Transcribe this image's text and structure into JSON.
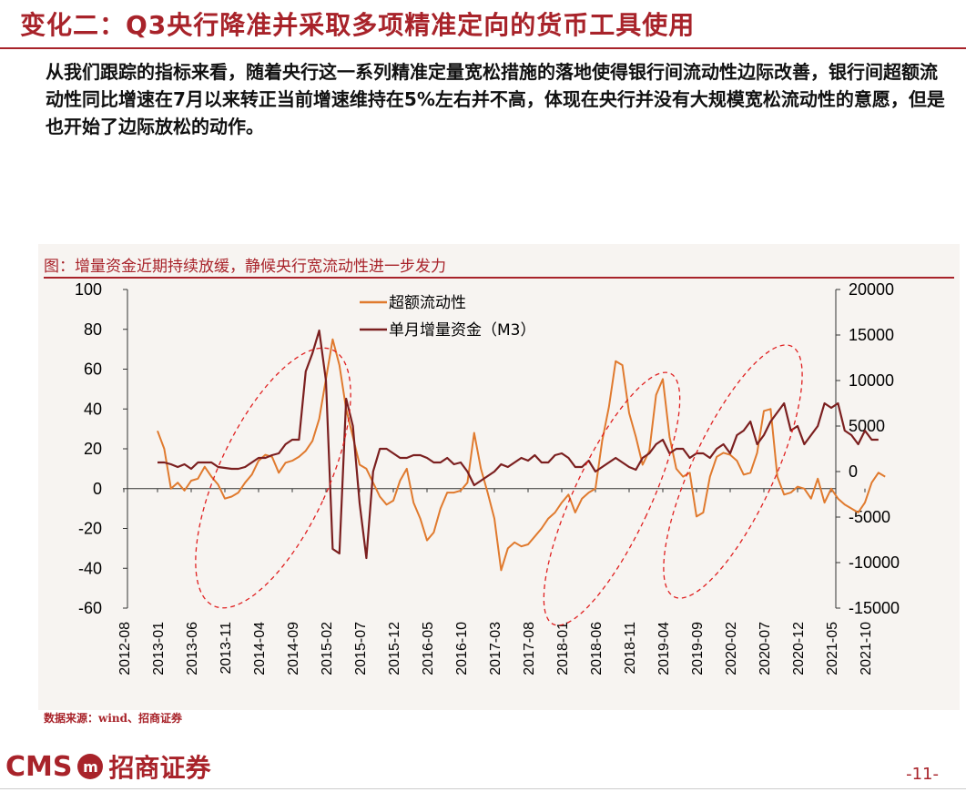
{
  "header": {
    "title": "变化二：Q3央行降准并采取多项精准定向的货币工具使用"
  },
  "body": {
    "paragraph": "从我们跟踪的指标来看，随着央行这一系列精准定量宽松措施的落地使得银行间流动性边际改善，银行间超额流动性同比增速在7月以来转正当前增速维持在5%左右并不高，体现在央行并没有大规模宽松流动性的意愿，但是也开始了边际放松的动作。"
  },
  "figure": {
    "caption": "图：增量资金近期持续放缓，静候央行宽流动性进一步发力",
    "source": "数据来源：wind、招商证券"
  },
  "footer": {
    "logo_en": "CMS",
    "logo_mark": "m",
    "logo_cn": "招商证券",
    "page": "-11-"
  },
  "colors": {
    "accent": "#a8232a",
    "series1": "#e07a2e",
    "series2": "#7b1f1f",
    "ellipse": "#e02020"
  },
  "chart_data": {
    "type": "line",
    "x_ticks": [
      "2012-08",
      "2013-01",
      "2013-06",
      "2013-11",
      "2014-04",
      "2014-09",
      "2015-02",
      "2015-07",
      "2015-12",
      "2016-05",
      "2016-10",
      "2017-03",
      "2017-08",
      "2018-01",
      "2018-06",
      "2018-11",
      "2019-04",
      "2019-09",
      "2020-02",
      "2020-07",
      "2020-12",
      "2021-05",
      "2021-10"
    ],
    "x_start": "2013-01",
    "y_left": {
      "min": -60,
      "max": 100,
      "ticks": [
        100,
        80,
        60,
        40,
        20,
        0,
        -20,
        -40,
        -60
      ]
    },
    "y_right": {
      "min": -15000,
      "max": 20000,
      "ticks": [
        20000,
        15000,
        10000,
        5000,
        0,
        -5000,
        -10000,
        -15000
      ]
    },
    "legend_position": "top-center",
    "series": [
      {
        "name": "超额流动性",
        "axis": "left",
        "color": "#e07a2e",
        "values": [
          29,
          20,
          0,
          3,
          -1,
          4,
          5,
          11,
          6,
          2,
          -5,
          -4,
          -2,
          3,
          7,
          14,
          17,
          16,
          8,
          13,
          14,
          16,
          19,
          24,
          35,
          55,
          75,
          62,
          40,
          26,
          12,
          10,
          3,
          -4,
          -8,
          -6,
          4,
          10,
          -7,
          -15,
          -26,
          -22,
          -10,
          -2,
          -2,
          -1,
          3,
          28,
          10,
          -2,
          -15,
          -41,
          -30,
          -27,
          -29,
          -28,
          -24,
          -20,
          -15,
          -12,
          -7,
          -3,
          -12,
          -5,
          -2,
          0,
          24,
          41,
          64,
          62,
          38,
          26,
          12,
          19,
          47,
          55,
          26,
          10,
          6,
          8,
          -14,
          -12,
          6,
          16,
          18,
          17,
          14,
          7,
          8,
          18,
          39,
          40,
          6,
          -3,
          -2,
          1,
          0,
          -5,
          5,
          -7,
          0,
          -5,
          -8,
          -10,
          -12,
          -7,
          3,
          8,
          6
        ]
      },
      {
        "name": "单月增量资金（M3）",
        "axis": "right",
        "color": "#7b1f1f",
        "values": [
          1000,
          1000,
          800,
          500,
          800,
          300,
          1000,
          1000,
          1000,
          500,
          400,
          300,
          300,
          500,
          1000,
          1500,
          1500,
          1800,
          2000,
          3000,
          3500,
          3500,
          11000,
          13000,
          15500,
          10000,
          -8500,
          -9000,
          8000,
          5000,
          -3500,
          -9500,
          0,
          2500,
          2500,
          2000,
          1500,
          1500,
          1800,
          1800,
          1500,
          1000,
          1000,
          1500,
          800,
          1000,
          0,
          -1500,
          -1000,
          -500,
          0,
          800,
          500,
          1000,
          1500,
          1200,
          1800,
          1000,
          1000,
          1800,
          2000,
          1500,
          500,
          500,
          1200,
          0,
          500,
          1000,
          1500,
          1000,
          500,
          200,
          1500,
          2000,
          3000,
          3500,
          2000,
          2500,
          2500,
          1500,
          2000,
          2000,
          1500,
          2500,
          3000,
          2000,
          4000,
          4500,
          5500,
          3000,
          4000,
          5500,
          6500,
          7500,
          4500,
          5000,
          3000,
          4000,
          5000,
          7500,
          7000,
          7500,
          4500,
          4000,
          3000,
          4500,
          3500,
          3500
        ]
      }
    ]
  }
}
